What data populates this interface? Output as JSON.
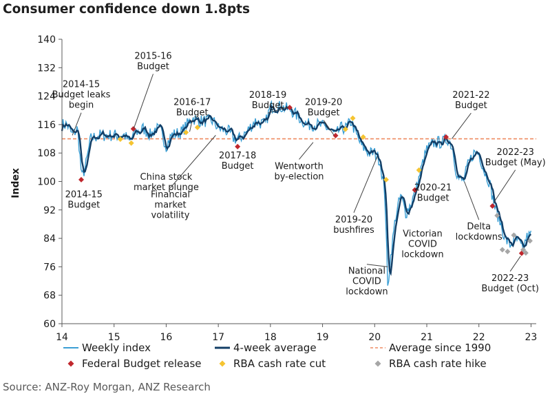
{
  "title": "Consumer confidence down 1.8pts",
  "source": "Source: ANZ-Roy Morgan, ANZ Research",
  "colors": {
    "weekly": "#3a9ed4",
    "average4w": "#123e66",
    "avg1990": "#ee8a60",
    "budget": "#c0272d",
    "rba_cut": "#f5c431",
    "rba_hike": "#a6a6a6",
    "axis": "#595959",
    "annotation_arrow": "#404040"
  },
  "chart_data": {
    "type": "line",
    "title": "Consumer confidence down 1.8pts",
    "ylabel": "Index",
    "xlabel": "",
    "ylim": [
      60,
      140
    ],
    "yticks": [
      60,
      68,
      76,
      84,
      92,
      100,
      108,
      116,
      124,
      132,
      140
    ],
    "xlim": [
      14,
      23.1
    ],
    "xticks": [
      14,
      15,
      16,
      17,
      18,
      19,
      20,
      21,
      22,
      23
    ],
    "xtick_labels": [
      "14",
      "15",
      "16",
      "17",
      "18",
      "19",
      "20",
      "21",
      "22",
      "23"
    ],
    "grid": false,
    "legend_position": "bottom",
    "legend": [
      {
        "key": "weekly",
        "label": "Weekly index",
        "style": "line"
      },
      {
        "key": "average4w",
        "label": "4-week average",
        "style": "line"
      },
      {
        "key": "avg1990",
        "label": "Average since 1990",
        "style": "dashed"
      },
      {
        "key": "budget",
        "label": "Federal Budget release",
        "style": "diamond"
      },
      {
        "key": "rba_cut",
        "label": "RBA cash rate cut",
        "style": "diamond"
      },
      {
        "key": "rba_hike",
        "label": "RBA cash rate hike",
        "style": "diamond"
      }
    ],
    "average_since_1990": 112,
    "anchors": [
      [
        14.0,
        116
      ],
      [
        14.1,
        116
      ],
      [
        14.2,
        113
      ],
      [
        14.3,
        115
      ],
      [
        14.38,
        101
      ],
      [
        14.45,
        104
      ],
      [
        14.55,
        112
      ],
      [
        14.7,
        113
      ],
      [
        15.0,
        113
      ],
      [
        15.2,
        113
      ],
      [
        15.3,
        111
      ],
      [
        15.4,
        114
      ],
      [
        15.5,
        114
      ],
      [
        15.55,
        115
      ],
      [
        15.7,
        113
      ],
      [
        15.8,
        115
      ],
      [
        15.9,
        114
      ],
      [
        16.0,
        110
      ],
      [
        16.1,
        113
      ],
      [
        16.3,
        114
      ],
      [
        16.4,
        116
      ],
      [
        16.5,
        118
      ],
      [
        16.6,
        117
      ],
      [
        16.75,
        117
      ],
      [
        16.9,
        117
      ],
      [
        17.0,
        115
      ],
      [
        17.2,
        114
      ],
      [
        17.3,
        112
      ],
      [
        17.4,
        112
      ],
      [
        17.55,
        114
      ],
      [
        17.7,
        117
      ],
      [
        17.9,
        116
      ],
      [
        18.0,
        121
      ],
      [
        18.2,
        121
      ],
      [
        18.4,
        120
      ],
      [
        18.55,
        118
      ],
      [
        18.7,
        116
      ],
      [
        18.9,
        116
      ],
      [
        19.1,
        115
      ],
      [
        19.25,
        113
      ],
      [
        19.35,
        115
      ],
      [
        19.45,
        115
      ],
      [
        19.55,
        117
      ],
      [
        19.65,
        113
      ],
      [
        19.75,
        110
      ],
      [
        19.9,
        108
      ],
      [
        20.0,
        108
      ],
      [
        20.1,
        106
      ],
      [
        20.2,
        96
      ],
      [
        20.25,
        70
      ],
      [
        20.3,
        78
      ],
      [
        20.4,
        90
      ],
      [
        20.5,
        96
      ],
      [
        20.6,
        91
      ],
      [
        20.7,
        94
      ],
      [
        20.8,
        98
      ],
      [
        20.9,
        104
      ],
      [
        21.0,
        109
      ],
      [
        21.15,
        111
      ],
      [
        21.3,
        111
      ],
      [
        21.4,
        112
      ],
      [
        21.45,
        111
      ],
      [
        21.5,
        109
      ],
      [
        21.55,
        104
      ],
      [
        21.6,
        101
      ],
      [
        21.7,
        100
      ],
      [
        21.8,
        105
      ],
      [
        21.9,
        108
      ],
      [
        22.0,
        108
      ],
      [
        22.1,
        103
      ],
      [
        22.2,
        100
      ],
      [
        22.3,
        93
      ],
      [
        22.4,
        89
      ],
      [
        22.5,
        84
      ],
      [
        22.6,
        82
      ],
      [
        22.7,
        84
      ],
      [
        22.8,
        82
      ],
      [
        22.85,
        80
      ],
      [
        22.9,
        84
      ],
      [
        23.0,
        85
      ]
    ],
    "noise_amplitude": 1.8,
    "federal_budget_release": [
      [
        14.37,
        100.5
      ],
      [
        15.37,
        114.8
      ],
      [
        17.37,
        109.8
      ],
      [
        18.37,
        120.8
      ],
      [
        19.25,
        112.9
      ],
      [
        20.77,
        97.6
      ],
      [
        21.37,
        112.5
      ],
      [
        22.26,
        93.1
      ],
      [
        22.82,
        79.8
      ]
    ],
    "rba_cash_rate_cut": [
      [
        15.12,
        111.9
      ],
      [
        15.33,
        110.8
      ],
      [
        16.38,
        113.8
      ],
      [
        16.6,
        115.2
      ],
      [
        19.44,
        114.7
      ],
      [
        19.58,
        117.8
      ],
      [
        19.78,
        112.5
      ],
      [
        20.22,
        100.5
      ],
      [
        20.85,
        103.2
      ]
    ],
    "rba_cash_rate_hike": [
      [
        22.35,
        90.4
      ],
      [
        22.45,
        80.8
      ],
      [
        22.55,
        80.3
      ],
      [
        22.67,
        84.9
      ],
      [
        22.85,
        80.8
      ],
      [
        22.9,
        79.9
      ],
      [
        22.98,
        83.3
      ]
    ],
    "annotations": [
      {
        "text": "2014-15|Budget leaks|begin",
        "x": 14.37,
        "y": 126.5,
        "arrow_to": [
          14.2,
          113
        ]
      },
      {
        "text": "2014-15|Budget",
        "x": 14.42,
        "y": 95.5
      },
      {
        "text": "2015-16|Budget",
        "x": 15.75,
        "y": 134.5,
        "arrow_to": [
          15.38,
          115
        ]
      },
      {
        "text": "China stock|market plunge",
        "x": 16.0,
        "y": 100.5
      },
      {
        "text": "2016-17|Budget",
        "x": 16.5,
        "y": 121.5,
        "arrow_to": [
          16.45,
          114
        ]
      },
      {
        "text": "Financial|market|volatility",
        "x": 16.08,
        "y": 95.5,
        "arrow_to": [
          16.95,
          113
        ]
      },
      {
        "text": "2017-18|Budget",
        "x": 17.37,
        "y": 106.5
      },
      {
        "text": "2018-19|Budget",
        "x": 17.95,
        "y": 123.5,
        "arrow_to": [
          18.35,
          121
        ]
      },
      {
        "text": "Wentworth|by-election",
        "x": 18.55,
        "y": 103.5,
        "arrow_to": [
          18.82,
          111
        ]
      },
      {
        "text": "2019-20|Budget",
        "x": 19.02,
        "y": 121.5,
        "arrow_to": [
          19.22,
          113
        ]
      },
      {
        "text": "2019-20|bushfires",
        "x": 19.6,
        "y": 88.5,
        "arrow_to": [
          20.05,
          107
        ]
      },
      {
        "text": "2021-22|Budget",
        "x": 21.85,
        "y": 123.5,
        "arrow_to": [
          21.48,
          112
        ]
      },
      {
        "text": "2020-21|Budget",
        "x": 21.12,
        "y": 97.5
      },
      {
        "text": "Victorian|COVID|lockdown",
        "x": 20.92,
        "y": 84.5
      },
      {
        "text": "2022-23|Budget (May)",
        "x": 22.7,
        "y": 107.5,
        "arrow_to": [
          22.28,
          94
        ]
      },
      {
        "text": "Delta|lockdowns",
        "x": 22.0,
        "y": 86.5,
        "arrow_to": [
          21.72,
          100
        ]
      },
      {
        "text": "National|COVID|lockdown",
        "x": 19.85,
        "y": 74.0,
        "arrow_to": [
          20.25,
          76
        ]
      },
      {
        "text": "2022-23|Budget (Oct)",
        "x": 22.6,
        "y": 72.0,
        "arrow_to": [
          22.8,
          79
        ]
      }
    ]
  }
}
